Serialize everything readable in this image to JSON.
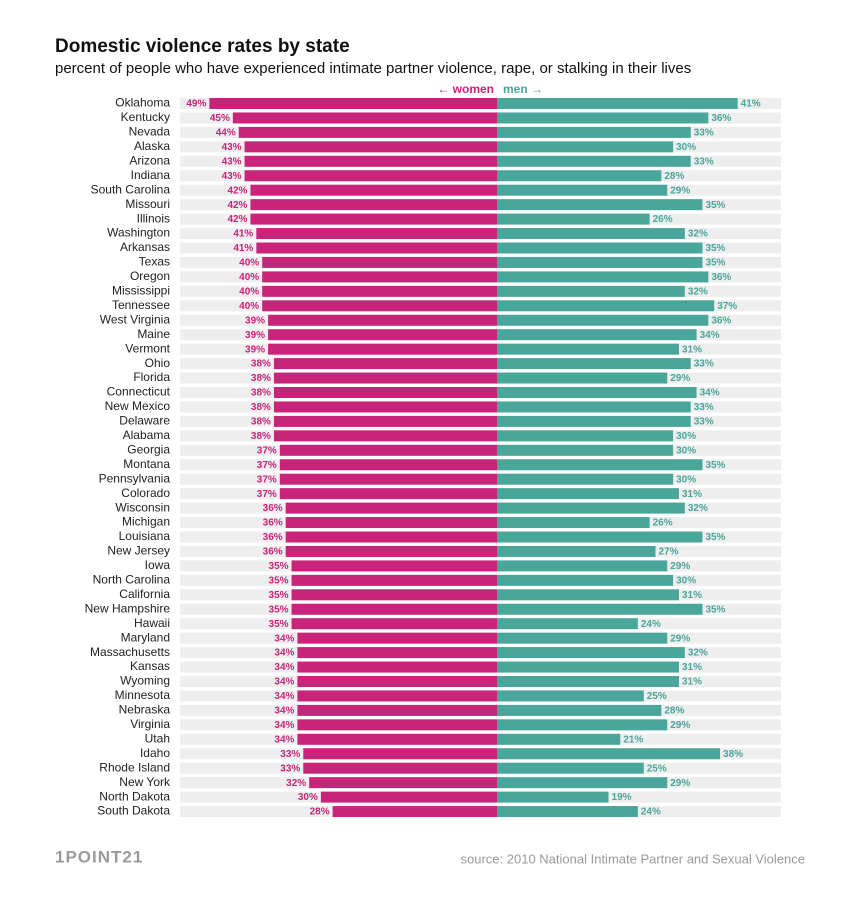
{
  "chart_data": {
    "type": "diverging-bar",
    "title": "Domestic violence rates by state",
    "subtitle": "percent of people who have experienced intimate partner violence, rape, or stalking in their lives",
    "source": "source: 2010 National Intimate Partner and Sexual Violence",
    "logo": "1POINT21",
    "categories": [
      "Oklahoma",
      "Kentucky",
      "Nevada",
      "Alaska",
      "Arizona",
      "Indiana",
      "South Carolina",
      "Missouri",
      "Illinois",
      "Washington",
      "Arkansas",
      "Texas",
      "Oregon",
      "Mississippi",
      "Tennessee",
      "West Virginia",
      "Maine",
      "Vermont",
      "Ohio",
      "Florida",
      "Connecticut",
      "New Mexico",
      "Delaware",
      "Alabama",
      "Georgia",
      "Montana",
      "Pennsylvania",
      "Colorado",
      "Wisconsin",
      "Michigan",
      "Louisiana",
      "New Jersey",
      "Iowa",
      "North Carolina",
      "California",
      "New Hampshire",
      "Hawaii",
      "Maryland",
      "Massachusetts",
      "Kansas",
      "Wyoming",
      "Minnesota",
      "Nebraska",
      "Virginia",
      "Utah",
      "Idaho",
      "Rhode Island",
      "New York",
      "North Dakota",
      "South Dakota"
    ],
    "series": [
      {
        "name": "← women",
        "color": "#c8247a",
        "side": "left",
        "values": [
          49,
          45,
          44,
          43,
          43,
          43,
          42,
          42,
          42,
          41,
          41,
          40,
          40,
          40,
          40,
          39,
          39,
          39,
          38,
          38,
          38,
          38,
          38,
          38,
          37,
          37,
          37,
          37,
          36,
          36,
          36,
          36,
          35,
          35,
          35,
          35,
          35,
          34,
          34,
          34,
          34,
          34,
          34,
          34,
          34,
          33,
          33,
          32,
          30,
          28
        ],
        "value_labels": [
          "49%",
          "45%",
          "44%",
          "43%",
          "43%",
          "43%",
          "42%",
          "42%",
          "42%",
          "41%",
          "41%",
          "40%",
          "40%",
          "40%",
          "40%",
          "39%",
          "39%",
          "39%",
          "38%",
          "38%",
          "38%",
          "38%",
          "38%",
          "38%",
          "37%",
          "37%",
          "37%",
          "37%",
          "36%",
          "36%",
          "36%",
          "36%",
          "35%",
          "35%",
          "35%",
          "35%",
          "35%",
          "34%",
          "34%",
          "34%",
          "34%",
          "34%",
          "34%",
          "34%",
          "34%",
          "33%",
          "33%",
          "32%",
          "30%",
          "28%"
        ]
      },
      {
        "name": "men →",
        "color": "#4aa59a",
        "side": "right",
        "values": [
          41,
          36,
          33,
          30,
          33,
          28,
          29,
          35,
          26,
          32,
          35,
          35,
          36,
          32,
          37,
          36,
          34,
          31,
          33,
          29,
          34,
          33,
          33,
          30,
          30,
          35,
          30,
          31,
          32,
          26,
          35,
          27,
          29,
          30,
          31,
          35,
          24,
          29,
          32,
          31,
          31,
          25,
          28,
          29,
          21,
          38,
          25,
          29,
          19,
          24
        ],
        "value_labels": [
          "41%",
          "36%",
          "33%",
          "30%",
          "33%",
          "28%",
          "29%",
          "35%",
          "26%",
          "32%",
          "35%",
          "35%",
          "36%",
          "32%",
          "37%",
          "36%",
          "34%",
          "31%",
          "33%",
          "29%",
          "34%",
          "33%",
          "33%",
          "30%",
          "30%",
          "35%",
          "30%",
          "31%",
          "32%",
          "26%",
          "35%",
          "27%",
          "29%",
          "30%",
          "31%",
          "35%",
          "24%",
          "29%",
          "32%",
          "31%",
          "31%",
          "25%",
          "28%",
          "29%",
          "21%",
          "38%",
          "25%",
          "29%",
          "19%",
          "24%"
        ]
      }
    ]
  }
}
